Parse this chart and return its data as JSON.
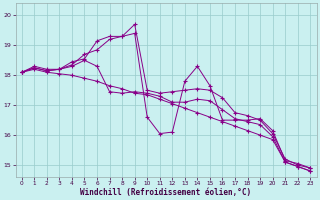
{
  "xlabel": "Windchill (Refroidissement éolien,°C)",
  "bg_color": "#caf0f0",
  "line_color": "#880088",
  "grid_color": "#99cccc",
  "xlim": [
    -0.5,
    23.5
  ],
  "ylim": [
    14.6,
    20.4
  ],
  "yticks": [
    15,
    16,
    17,
    18,
    19,
    20
  ],
  "xticks": [
    0,
    1,
    2,
    3,
    4,
    5,
    6,
    7,
    8,
    9,
    10,
    11,
    12,
    13,
    14,
    15,
    16,
    17,
    18,
    19,
    20,
    21,
    22,
    23
  ],
  "series": [
    [
      18.1,
      18.3,
      18.2,
      18.2,
      18.35,
      18.7,
      18.85,
      19.2,
      19.3,
      19.7,
      17.5,
      17.4,
      17.45,
      17.5,
      17.55,
      17.5,
      17.25,
      16.75,
      16.65,
      16.5,
      16.05,
      15.2,
      15.0,
      14.9
    ],
    [
      18.1,
      18.25,
      18.15,
      18.2,
      18.45,
      18.55,
      19.15,
      19.3,
      19.3,
      19.4,
      16.6,
      16.05,
      16.1,
      17.8,
      18.3,
      17.65,
      16.5,
      16.5,
      16.5,
      16.55,
      16.15,
      15.15,
      15.05,
      14.9
    ],
    [
      18.1,
      18.25,
      18.15,
      18.2,
      18.3,
      18.5,
      18.3,
      17.45,
      17.4,
      17.45,
      17.4,
      17.3,
      17.1,
      17.1,
      17.2,
      17.15,
      16.85,
      16.55,
      16.45,
      16.35,
      15.95,
      15.1,
      14.95,
      14.8
    ],
    [
      18.1,
      18.2,
      18.1,
      18.05,
      18.0,
      17.9,
      17.8,
      17.65,
      17.55,
      17.4,
      17.35,
      17.2,
      17.05,
      16.9,
      16.75,
      16.6,
      16.45,
      16.3,
      16.15,
      16.0,
      15.85,
      15.1,
      14.95,
      14.8
    ]
  ]
}
